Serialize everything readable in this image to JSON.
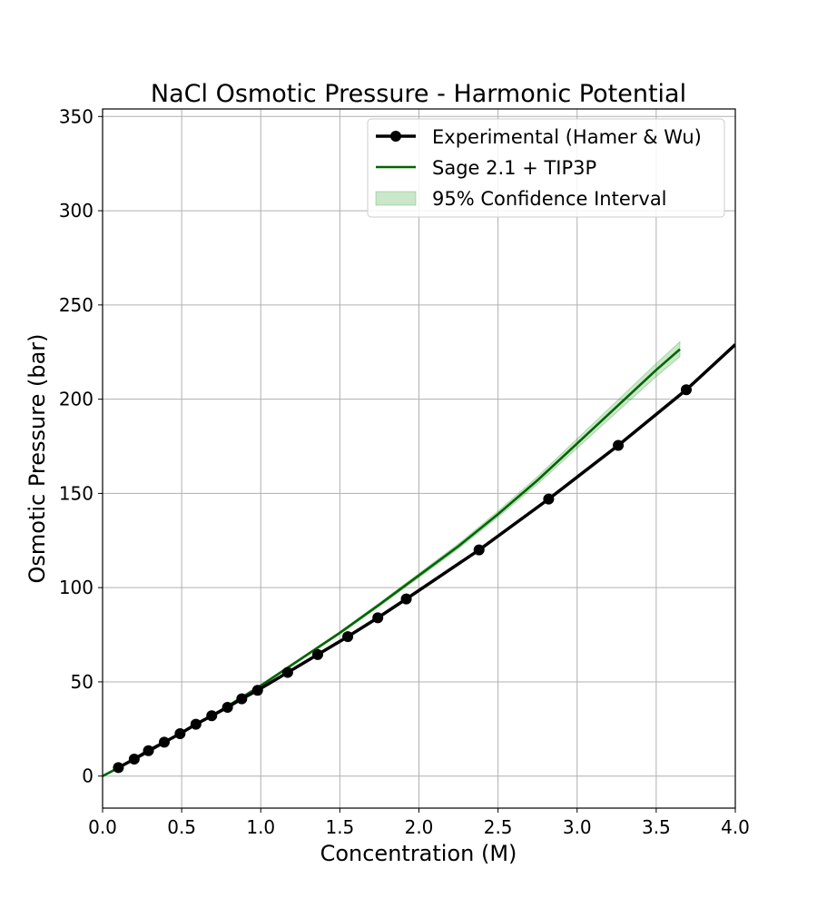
{
  "chart_data": {
    "type": "line",
    "title": "NaCl Osmotic Pressure - Harmonic Potential",
    "xlabel": "Concentration (M)",
    "ylabel": "Osmotic Pressure (bar)",
    "xlim": [
      0.0,
      4.0
    ],
    "ylim": [
      -17,
      354
    ],
    "xticks": [
      "0.0",
      "0.5",
      "1.0",
      "1.5",
      "2.0",
      "2.5",
      "3.0",
      "3.5",
      "4.0"
    ],
    "yticks": [
      "0",
      "50",
      "100",
      "150",
      "200",
      "250",
      "300",
      "350"
    ],
    "grid": true,
    "legend_position": "top-right",
    "series": [
      {
        "name": "Experimental (Hamer & Wu)",
        "color": "#000000",
        "marker": "circle",
        "x": [
          0.1,
          0.2,
          0.29,
          0.39,
          0.49,
          0.59,
          0.69,
          0.79,
          0.88,
          0.98,
          1.17,
          1.36,
          1.55,
          1.74,
          1.92,
          2.38,
          2.82,
          3.26,
          3.69
        ],
        "y": [
          4.5,
          9.0,
          13.5,
          18.0,
          22.5,
          27.5,
          32.0,
          36.5,
          41.0,
          45.5,
          55.0,
          64.5,
          74.0,
          84.0,
          94.0,
          120.0,
          147.0,
          175.5,
          205.0
        ],
        "extends_to": {
          "x": 4.0,
          "y": 229.0
        }
      },
      {
        "name": "Sage 2.1 + TIP3P",
        "color": "#006400",
        "x": [
          0.0,
          0.25,
          0.5,
          0.75,
          1.0,
          1.25,
          1.5,
          1.75,
          2.0,
          2.25,
          2.5,
          2.75,
          3.0,
          3.25,
          3.5,
          3.65
        ],
        "y": [
          0.0,
          11.0,
          23.0,
          35.0,
          48.0,
          62.0,
          76.0,
          91.0,
          106.5,
          122.0,
          139.0,
          157.0,
          176.5,
          196.0,
          215.5,
          226.5
        ],
        "ci_lower": [
          0.0,
          10.8,
          22.7,
          34.6,
          47.5,
          61.4,
          75.3,
          90.1,
          105.4,
          120.7,
          137.4,
          155.0,
          174.0,
          193.0,
          212.0,
          222.5
        ],
        "ci_upper": [
          0.0,
          11.2,
          23.3,
          35.4,
          48.5,
          62.6,
          76.7,
          91.9,
          107.6,
          123.3,
          140.6,
          159.0,
          179.0,
          199.0,
          219.0,
          230.5
        ]
      }
    ],
    "ci_legend_label": "95% Confidence Interval",
    "ci_color": "#2ca02c"
  }
}
